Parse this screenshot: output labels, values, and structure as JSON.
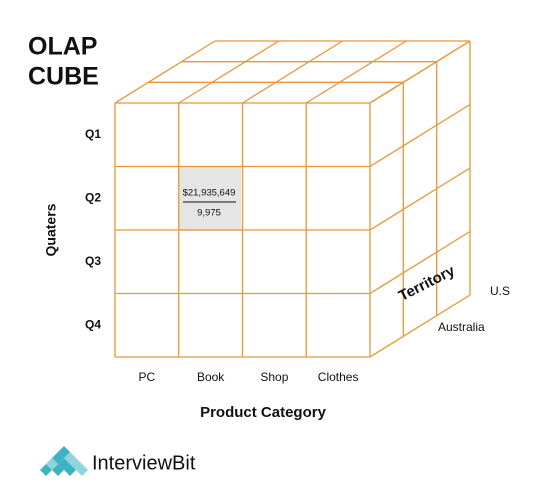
{
  "title_lines": [
    "OLAP",
    "CUBE"
  ],
  "y_axis_label": "Quaters",
  "rows": [
    "Q1",
    "Q2",
    "Q3",
    "Q4"
  ],
  "columns": [
    "PC",
    "Book",
    "Shop",
    "Clothes"
  ],
  "x_axis_label": "Product Category",
  "cell": {
    "amount": "$21,935,649",
    "count": "9,975"
  },
  "depth_axis": {
    "label": "Territory",
    "members": [
      "U.S",
      "Australia"
    ]
  },
  "logo": "InterviewBit"
}
